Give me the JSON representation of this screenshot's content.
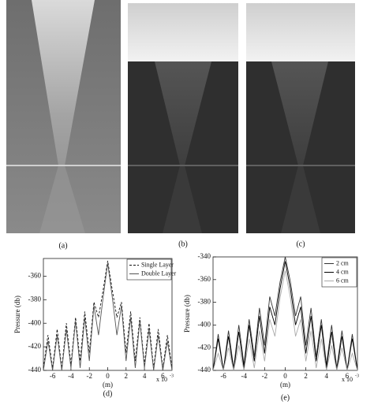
{
  "figures": {
    "a": "(a)",
    "b": "(b)",
    "c": "(c)"
  },
  "chart_data": [
    {
      "type": "line",
      "caption": "(d)",
      "ylabel": "Pressure (db)",
      "xlabel": "(m)",
      "x_scale_label": "x 10",
      "x_scale_exponent": "-3",
      "x": [
        -7,
        -6.5,
        -6,
        -5.5,
        -5,
        -4.5,
        -4,
        -3.5,
        -3,
        -2.5,
        -2,
        -1.5,
        -1,
        -0.5,
        0,
        0.5,
        1,
        1.5,
        2,
        2.5,
        3,
        3.5,
        4,
        4.5,
        5,
        5.5,
        6,
        6.5,
        7
      ],
      "xlim": [
        -7,
        7
      ],
      "xticks": [
        -6,
        -4,
        -2,
        0,
        2,
        4,
        6
      ],
      "ylim": [
        -440,
        -345
      ],
      "yticks": [
        -440,
        -420,
        -400,
        -380,
        -360
      ],
      "legend": "upper right",
      "series": [
        {
          "name": "Single Layer",
          "color": "#111111",
          "linestyle": "dashed",
          "values": [
            -438,
            -410,
            -438,
            -405,
            -438,
            -400,
            -435,
            -395,
            -432,
            -390,
            -425,
            -382,
            -395,
            -372,
            -347,
            -372,
            -395,
            -382,
            -425,
            -390,
            -432,
            -395,
            -435,
            -400,
            -438,
            -405,
            -438,
            -410,
            -438
          ]
        },
        {
          "name": "Double Layer",
          "color": "#555555",
          "linestyle": "solid",
          "values": [
            -440,
            -415,
            -440,
            -410,
            -440,
            -405,
            -438,
            -398,
            -438,
            -395,
            -432,
            -385,
            -410,
            -378,
            -349,
            -378,
            -410,
            -385,
            -432,
            -395,
            -438,
            -398,
            -438,
            -405,
            -440,
            -410,
            -440,
            -415,
            -440
          ]
        }
      ]
    },
    {
      "type": "line",
      "caption": "(e)",
      "ylabel": "Pressure (db)",
      "xlabel": "(m)",
      "x_scale_label": "x 10",
      "x_scale_exponent": "-3",
      "x": [
        -7,
        -6.5,
        -6,
        -5.5,
        -5,
        -4.5,
        -4,
        -3.5,
        -3,
        -2.5,
        -2,
        -1.5,
        -1,
        -0.5,
        0,
        0.5,
        1,
        1.5,
        2,
        2.5,
        3,
        3.5,
        4,
        4.5,
        5,
        5.5,
        6,
        6.5,
        7
      ],
      "xlim": [
        -7,
        7
      ],
      "xticks": [
        -6,
        -4,
        -2,
        0,
        2,
        4,
        6
      ],
      "ylim": [
        -440,
        -340
      ],
      "yticks": [
        -440,
        -420,
        -400,
        -380,
        -360,
        -340
      ],
      "legend": "upper right",
      "series": [
        {
          "name": "2 cm",
          "color": "#333333",
          "linestyle": "solid",
          "values": [
            -440,
            -408,
            -440,
            -405,
            -438,
            -400,
            -435,
            -395,
            -428,
            -385,
            -418,
            -375,
            -392,
            -362,
            -340,
            -362,
            -392,
            -375,
            -418,
            -385,
            -428,
            -395,
            -435,
            -400,
            -438,
            -405,
            -440,
            -408,
            -440
          ]
        },
        {
          "name": "4 cm",
          "color": "#000000",
          "linestyle": "solid",
          "values": [
            -440,
            -412,
            -440,
            -410,
            -440,
            -406,
            -438,
            -400,
            -432,
            -392,
            -425,
            -384,
            -400,
            -368,
            -344,
            -368,
            -400,
            -384,
            -425,
            -392,
            -432,
            -400,
            -438,
            -406,
            -440,
            -410,
            -440,
            -412,
            -440
          ]
        },
        {
          "name": "6 cm",
          "color": "#aaaaaa",
          "linestyle": "solid",
          "values": [
            -440,
            -425,
            -440,
            -420,
            -440,
            -418,
            -440,
            -412,
            -438,
            -405,
            -432,
            -395,
            -410,
            -376,
            -352,
            -376,
            -410,
            -395,
            -432,
            -405,
            -438,
            -412,
            -440,
            -418,
            -440,
            -420,
            -440,
            -425,
            -440
          ]
        }
      ]
    }
  ]
}
